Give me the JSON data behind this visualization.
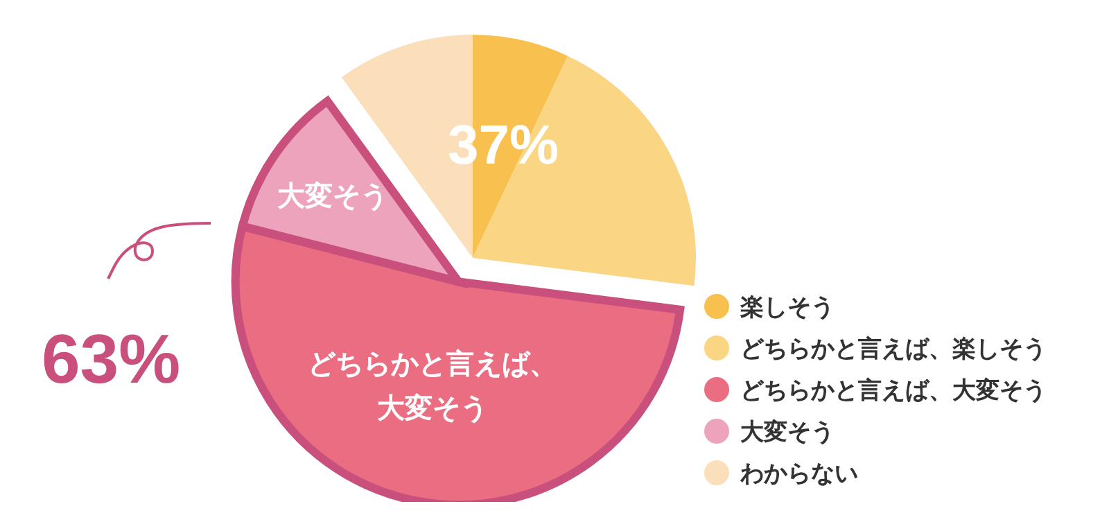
{
  "chart_data": {
    "type": "pie",
    "categories": [
      "楽しそう",
      "どちらかと言えば、楽しそう",
      "どちらかと言えば、大変そう",
      "大変そう",
      "わからない"
    ],
    "values": [
      7,
      20,
      52,
      11,
      10
    ],
    "colors": [
      "#f8c04e",
      "#fad584",
      "#ea6d82",
      "#eea3bd",
      "#fbdfbb"
    ],
    "annotations": [
      "37%",
      "63%",
      "大変そう",
      "どちらかと言えば、大変そう"
    ],
    "legend": "bottom right"
  }
}
